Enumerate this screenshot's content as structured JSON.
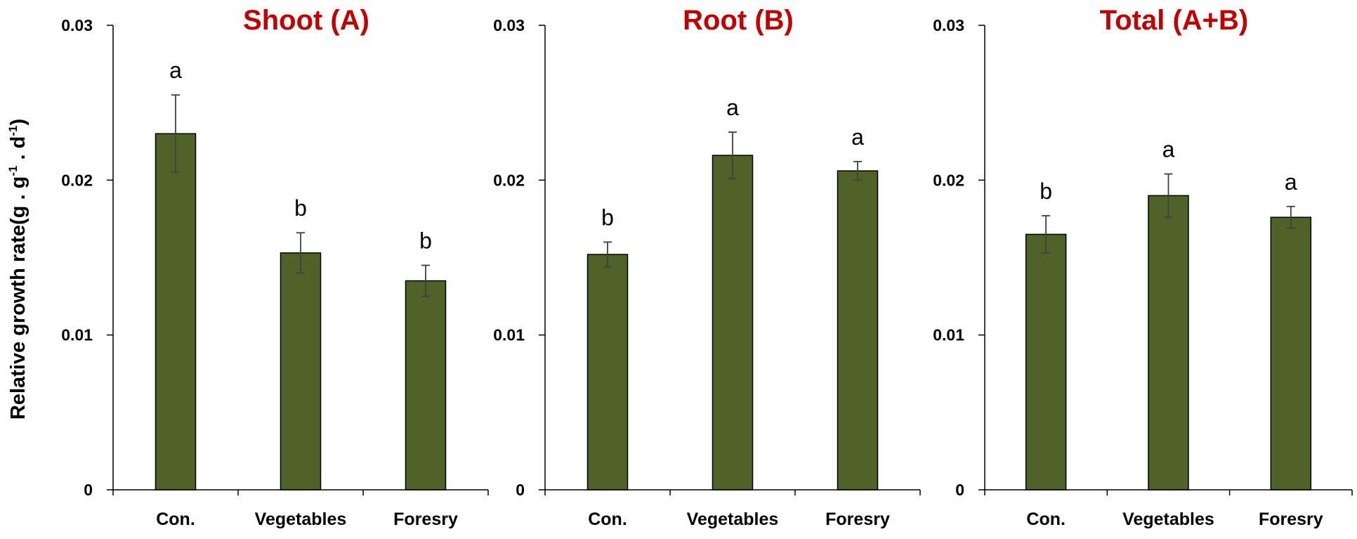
{
  "y_axis_label": {
    "prefix": "Relative growth rate(g",
    "mid1": " . g",
    "exp1": "-1",
    "mid2": " . d",
    "exp2": "-1",
    "suffix": ")"
  },
  "colors": {
    "bar": "#4f6228",
    "title": "#c00000",
    "axis": "#000000",
    "error": "#404040"
  },
  "chart_data": [
    {
      "type": "bar",
      "title": "Shoot (A)",
      "categories": [
        "Con.",
        "Vegetables",
        "Foresry"
      ],
      "values": [
        0.023,
        0.0153,
        0.0135
      ],
      "errors": [
        0.0025,
        0.0013,
        0.001
      ],
      "letters": [
        "a",
        "b",
        "b"
      ],
      "ylim": [
        0,
        0.03
      ],
      "yticks": [
        "0",
        "0.01",
        "0.02",
        "0.03"
      ]
    },
    {
      "type": "bar",
      "title": "Root (B)",
      "categories": [
        "Con.",
        "Vegetables",
        "Foresry"
      ],
      "values": [
        0.0152,
        0.0216,
        0.0206
      ],
      "errors": [
        0.0008,
        0.0015,
        0.0006
      ],
      "letters": [
        "b",
        "a",
        "a"
      ],
      "ylim": [
        0,
        0.03
      ],
      "yticks": [
        "0",
        "0.01",
        "0.02",
        "0.03"
      ]
    },
    {
      "type": "bar",
      "title": "Total (A+B)",
      "categories": [
        "Con.",
        "Vegetables",
        "Foresry"
      ],
      "values": [
        0.0165,
        0.019,
        0.0176
      ],
      "errors": [
        0.0012,
        0.0014,
        0.0007
      ],
      "letters": [
        "b",
        "a",
        "a"
      ],
      "ylim": [
        0,
        0.03
      ],
      "yticks": [
        "0",
        "0.01",
        "0.02",
        "0.03"
      ]
    }
  ]
}
